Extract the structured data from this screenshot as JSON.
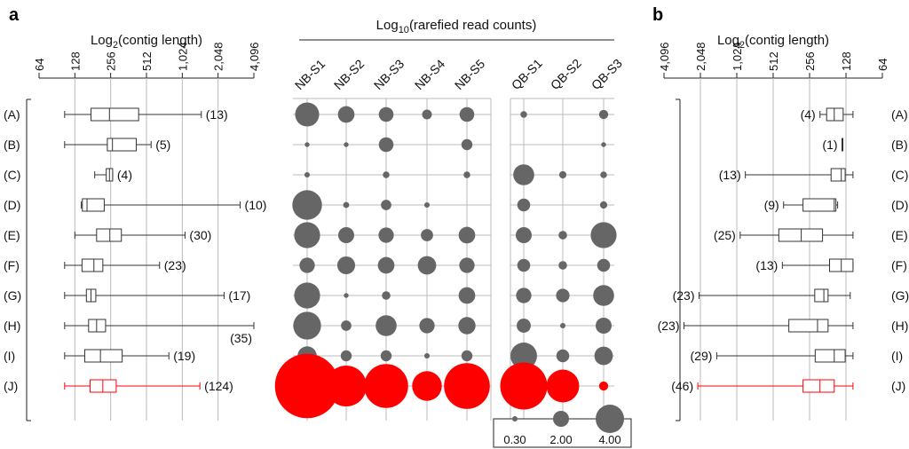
{
  "panel_letters": {
    "a": "a",
    "b": "b"
  },
  "colors": {
    "default": "#333333",
    "highlight": "#ff0000",
    "bubble": "#666666",
    "grid": "#bbbbbb"
  },
  "chart_data": [
    {
      "id": "panel-a-boxplot",
      "type": "boxplot",
      "title": "",
      "xlabel_prefix": "Log",
      "xlabel_sub": "2",
      "xlabel_suffix": "(contig length)",
      "scale": "log2",
      "xlim": [
        64,
        4096
      ],
      "ticks": [
        64,
        128,
        256,
        512,
        1024,
        2048,
        4096
      ],
      "tick_labels": [
        "64",
        "128",
        "256",
        "512",
        "1,024",
        "2,048",
        "4,096"
      ],
      "categories": [
        "(A)",
        "(B)",
        "(C)",
        "(D)",
        "(E)",
        "(F)",
        "(G)",
        "(H)",
        "(I)",
        "(J)"
      ],
      "highlight_index": 9,
      "boxes": [
        {
          "min": 105,
          "q1": 175,
          "median": 250,
          "q3": 440,
          "max": 1480,
          "n": "(13)"
        },
        {
          "min": 105,
          "q1": 240,
          "median": 265,
          "q3": 420,
          "max": 560,
          "n": "(5)"
        },
        {
          "min": 188,
          "q1": 235,
          "median": 250,
          "q3": 266,
          "max": 266,
          "n": "(4)"
        },
        {
          "min": 145,
          "q1": 148,
          "median": 162,
          "q3": 226,
          "max": 3140,
          "n": "(10)"
        },
        {
          "min": 128,
          "q1": 195,
          "median": 252,
          "q3": 315,
          "max": 1080,
          "n": "(30)"
        },
        {
          "min": 105,
          "q1": 147,
          "median": 185,
          "q3": 220,
          "max": 660,
          "n": "(23)"
        },
        {
          "min": 105,
          "q1": 160,
          "median": 175,
          "q3": 192,
          "max": 2300,
          "n": "(17)"
        },
        {
          "min": 105,
          "q1": 167,
          "median": 195,
          "q3": 232,
          "max": 4096,
          "n": "(35)"
        },
        {
          "min": 105,
          "q1": 155,
          "median": 210,
          "q3": 320,
          "max": 790,
          "n": "(19)"
        },
        {
          "min": 105,
          "q1": 172,
          "median": 220,
          "q3": 285,
          "max": 1440,
          "n": "(124)"
        }
      ]
    },
    {
      "id": "panel-a-bubbles",
      "type": "bubble",
      "title": "Log",
      "title_sub": "10",
      "title_suffix": "(rarefied read counts)",
      "groups": [
        {
          "columns": [
            "NB-S1",
            "NB-S2",
            "NB-S3",
            "NB-S4",
            "NB-S5"
          ]
        },
        {
          "columns": [
            "QB-S1",
            "QB-S2",
            "QB-S3"
          ]
        }
      ],
      "rows": [
        "(A)",
        "(B)",
        "(C)",
        "(D)",
        "(E)",
        "(F)",
        "(G)",
        "(H)",
        "(I)",
        "(J)"
      ],
      "highlight_index": 9,
      "values": [
        [
          3.3,
          2.1,
          1.8,
          1.0,
          1.8,
          0.5,
          0.0,
          0.9
        ],
        [
          0.2,
          0.2,
          1.8,
          0.0,
          1.2,
          0.0,
          0.0,
          0.2
        ],
        [
          0.3,
          0.0,
          0.5,
          0.0,
          0.5,
          2.8,
          0.6,
          0.5
        ],
        [
          4.2,
          0.4,
          1.1,
          0.3,
          0.0,
          1.5,
          0.0,
          0.6
        ],
        [
          3.6,
          2.0,
          1.9,
          1.4,
          2.1,
          2.0,
          0.8,
          3.6
        ],
        [
          1.9,
          2.3,
          2.1,
          2.4,
          1.9,
          1.5,
          0.8,
          1.5
        ],
        [
          3.6,
          0.2,
          0.8,
          0.0,
          2.1,
          1.9,
          1.6,
          2.8
        ],
        [
          3.9,
          1.1,
          2.8,
          1.9,
          2.2,
          1.7,
          0.3,
          2.0
        ],
        [
          2.5,
          1.2,
          1.2,
          0.3,
          1.2,
          3.7,
          1.5,
          2.4
        ],
        [
          9.8,
          6.0,
          6.5,
          4.2,
          6.8,
          7.0,
          4.7,
          0.9
        ]
      ],
      "legend": {
        "values": [
          0.3,
          2.0,
          4.0
        ],
        "labels": [
          "0.30",
          "2.00",
          "4.00"
        ],
        "placement": "bottom"
      }
    },
    {
      "id": "panel-b-boxplot",
      "type": "boxplot",
      "title": "",
      "xlabel_prefix": "Log",
      "xlabel_sub": "2",
      "xlabel_suffix": "(contig length)",
      "scale": "log2",
      "reversed": true,
      "xlim": [
        64,
        4096
      ],
      "ticks": [
        4096,
        2048,
        1024,
        512,
        256,
        128,
        64
      ],
      "tick_labels": [
        "4,096",
        "2,048",
        "1,024",
        "512",
        "256",
        "128",
        "64"
      ],
      "categories": [
        "(A)",
        "(B)",
        "(C)",
        "(D)",
        "(E)",
        "(F)",
        "(G)",
        "(H)",
        "(I)",
        "(J)"
      ],
      "highlight_index": 9,
      "boxes": [
        {
          "min": 112,
          "q1": 135,
          "median": 160,
          "q3": 185,
          "max": 210,
          "n": "(4)"
        },
        {
          "min": 138,
          "q1": 138,
          "median": 138,
          "q3": 138,
          "max": 138,
          "n": "(1)"
        },
        {
          "min": 112,
          "q1": 130,
          "median": 140,
          "q3": 170,
          "max": 870,
          "n": "(13)"
        },
        {
          "min": 150,
          "q1": 155,
          "median": 160,
          "q3": 290,
          "max": 420,
          "n": "(9)"
        },
        {
          "min": 112,
          "q1": 200,
          "median": 300,
          "q3": 460,
          "max": 960,
          "n": "(25)"
        },
        {
          "min": 112,
          "q1": 112,
          "median": 140,
          "q3": 175,
          "max": 430,
          "n": "(13)"
        },
        {
          "min": 118,
          "q1": 180,
          "median": 195,
          "q3": 232,
          "max": 2100,
          "n": "(23)"
        },
        {
          "min": 112,
          "q1": 180,
          "median": 220,
          "q3": 380,
          "max": 2800,
          "n": "(23)"
        },
        {
          "min": 112,
          "q1": 130,
          "median": 160,
          "q3": 230,
          "max": 1500,
          "n": "(29)"
        },
        {
          "min": 112,
          "q1": 160,
          "median": 210,
          "q3": 290,
          "max": 2150,
          "n": "(46)"
        }
      ]
    }
  ]
}
